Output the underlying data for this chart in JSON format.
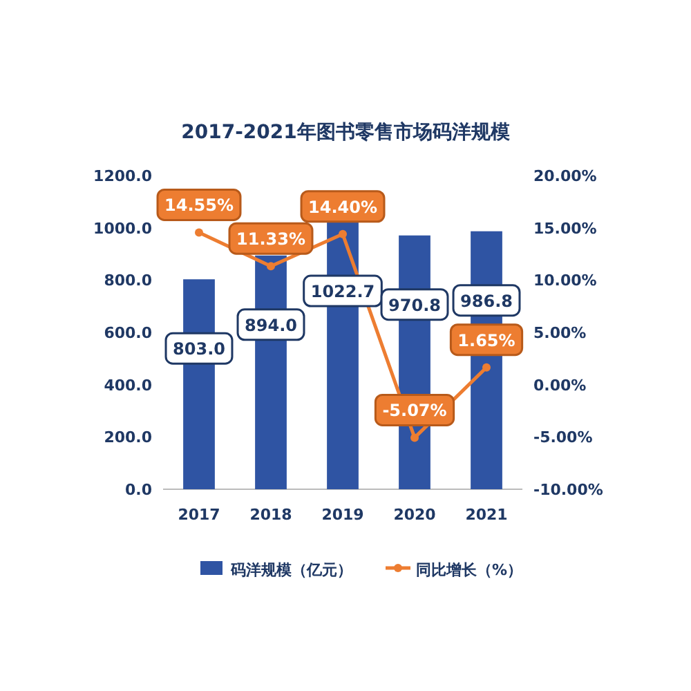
{
  "chart_data": {
    "type": "bar",
    "title": "2017-2021年图书零售市场码洋规模",
    "categories": [
      "2017",
      "2018",
      "2019",
      "2020",
      "2021"
    ],
    "series": [
      {
        "name": "码洋规模（亿元）",
        "color": "#2f54a3",
        "values": [
          803.0,
          894.0,
          1022.7,
          970.8,
          986.8
        ],
        "value_labels": [
          "803.0",
          "894.0",
          "1022.7",
          "970.8",
          "986.8"
        ]
      },
      {
        "name": "同比增长（%）",
        "type": "line",
        "axis": "y2",
        "color": "#ed7d31",
        "marker": "circle",
        "values": [
          14.55,
          11.33,
          14.4,
          -5.07,
          1.65
        ],
        "value_labels": [
          "14.55%",
          "11.33%",
          "14.40%",
          "-5.07%",
          "1.65%"
        ]
      }
    ],
    "ylim": [
      0,
      1200
    ],
    "yticks": [
      {
        "value": 0,
        "label": "0.0"
      },
      {
        "value": 200,
        "label": "200.0"
      },
      {
        "value": 400,
        "label": "400.0"
      },
      {
        "value": 600,
        "label": "600.0"
      },
      {
        "value": 800,
        "label": "800.0"
      },
      {
        "value": 1000,
        "label": "1000.0"
      },
      {
        "value": 1200,
        "label": "1200.0"
      }
    ],
    "y2lim": [
      -10,
      20
    ],
    "y2ticks": [
      {
        "value": -10,
        "label": "-10.00%"
      },
      {
        "value": -5,
        "label": "-5.00%"
      },
      {
        "value": 0,
        "label": "0.00%"
      },
      {
        "value": 5,
        "label": "5.00%"
      },
      {
        "value": 10,
        "label": "10.00%"
      },
      {
        "value": 15,
        "label": "15.00%"
      },
      {
        "value": 20,
        "label": "20.00%"
      }
    ],
    "legend": "bottom",
    "grid": false
  }
}
